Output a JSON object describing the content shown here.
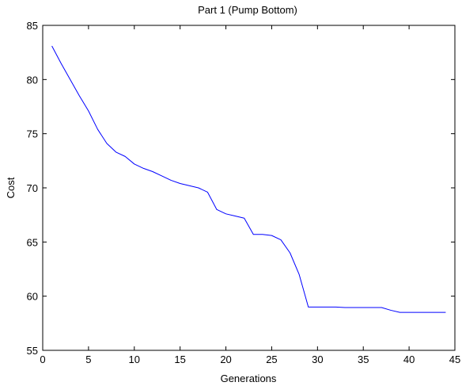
{
  "chart_data": {
    "type": "line",
    "title": "Part 1 (Pump Bottom)",
    "xlabel": "Generations",
    "ylabel": "Cost",
    "xlim": [
      0,
      45
    ],
    "ylim": [
      55,
      85
    ],
    "xticks": [
      0,
      5,
      10,
      15,
      20,
      25,
      30,
      35,
      40,
      45
    ],
    "yticks": [
      55,
      60,
      65,
      70,
      75,
      80,
      85
    ],
    "grid": false,
    "legend": "none",
    "series": [
      {
        "color": "#0000ff",
        "x": [
          1,
          2,
          3,
          4,
          5,
          6,
          7,
          8,
          9,
          10,
          11,
          12,
          13,
          14,
          15,
          16,
          17,
          18,
          19,
          20,
          21,
          22,
          23,
          24,
          25,
          26,
          27,
          28,
          29,
          30,
          31,
          32,
          33,
          34,
          35,
          36,
          37,
          38,
          39,
          40,
          41,
          42,
          43,
          44
        ],
        "y": [
          83.1,
          81.5,
          80.0,
          78.5,
          77.1,
          75.4,
          74.1,
          73.3,
          72.9,
          72.2,
          71.8,
          71.5,
          71.1,
          70.7,
          70.4,
          70.2,
          70.0,
          69.6,
          68.0,
          67.6,
          67.4,
          67.2,
          65.7,
          65.7,
          65.6,
          65.2,
          64.0,
          62.0,
          59.0,
          59.0,
          59.0,
          59.0,
          58.95,
          58.95,
          58.95,
          58.95,
          58.95,
          58.7,
          58.5,
          58.5,
          58.5,
          58.5,
          58.5,
          58.5
        ]
      }
    ]
  }
}
